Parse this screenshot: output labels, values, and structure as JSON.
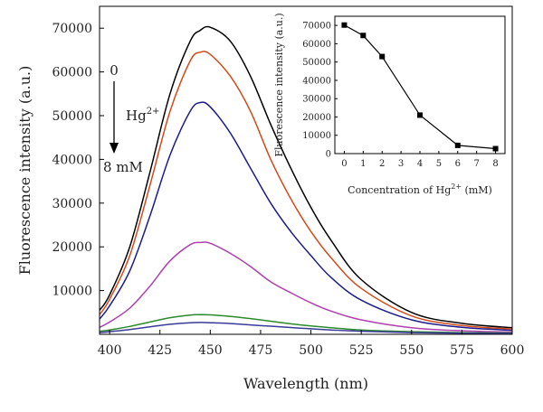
{
  "chart_data": [
    {
      "type": "line",
      "xlabel": "Wavelength (nm)",
      "ylabel": "Fluorescence intensity (a.u.)",
      "xlim": [
        395,
        600
      ],
      "ylim": [
        0,
        75000
      ],
      "xticks": [
        400,
        425,
        450,
        475,
        500,
        525,
        550,
        575,
        600
      ],
      "yticks": [
        10000,
        20000,
        30000,
        40000,
        50000,
        60000,
        70000
      ],
      "grid": false,
      "x": [
        395,
        400,
        410,
        420,
        430,
        440,
        445,
        450,
        460,
        470,
        480,
        490,
        500,
        510,
        525,
        550,
        575,
        600
      ],
      "series": [
        {
          "color": "#000000",
          "values": [
            5500,
            9000,
            20000,
            37000,
            55000,
            67000,
            69500,
            70200,
            67000,
            59000,
            48000,
            38000,
            29000,
            21500,
            12500,
            5000,
            2500,
            1500
          ]
        },
        {
          "color": "#d24a1a",
          "values": [
            4500,
            8000,
            18000,
            34000,
            51000,
            62500,
            64500,
            64000,
            59000,
            51000,
            40000,
            31000,
            23500,
            17500,
            10500,
            4200,
            2000,
            1200
          ]
        },
        {
          "color": "#1c1c8c",
          "values": [
            3500,
            6500,
            14500,
            27000,
            41000,
            51000,
            53000,
            52000,
            46000,
            38000,
            30000,
            23500,
            18000,
            13000,
            7800,
            3300,
            1600,
            900
          ]
        },
        {
          "color": "#b03fb0",
          "values": [
            1600,
            2800,
            6000,
            11000,
            16800,
            20500,
            21000,
            20800,
            18500,
            15500,
            12000,
            9500,
            7200,
            5300,
            3300,
            1500,
            800,
            500
          ]
        },
        {
          "color": "#2c8a2c",
          "values": [
            700,
            1000,
            1800,
            2800,
            3800,
            4400,
            4500,
            4450,
            4100,
            3600,
            3000,
            2400,
            1900,
            1500,
            1000,
            600,
            400,
            300
          ]
        },
        {
          "color": "#3a3a9a",
          "values": [
            400,
            600,
            1100,
            1700,
            2300,
            2650,
            2700,
            2650,
            2450,
            2150,
            1850,
            1550,
            1250,
            1000,
            700,
            400,
            250,
            200
          ]
        }
      ],
      "annotations": {
        "start": "0",
        "ion": "Hg",
        "ion_charge": "2+",
        "end": "8 mM"
      }
    },
    {
      "type": "line",
      "xlabel_main": "Concentration of Hg",
      "xlabel_sup": "2+",
      "xlabel_unit": " (mM)",
      "ylabel": "Fluorescence intensity (a.u.)",
      "xlim": [
        -0.5,
        8.5
      ],
      "ylim": [
        0,
        75000
      ],
      "xticks": [
        0,
        1,
        2,
        3,
        4,
        5,
        6,
        7,
        8
      ],
      "yticks": [
        0,
        10000,
        20000,
        30000,
        40000,
        50000,
        60000,
        70000
      ],
      "x": [
        0,
        1,
        2,
        4,
        6,
        8
      ],
      "values": [
        70200,
        64500,
        53000,
        21000,
        4500,
        2700
      ],
      "marker": "square",
      "color": "#000000"
    }
  ]
}
